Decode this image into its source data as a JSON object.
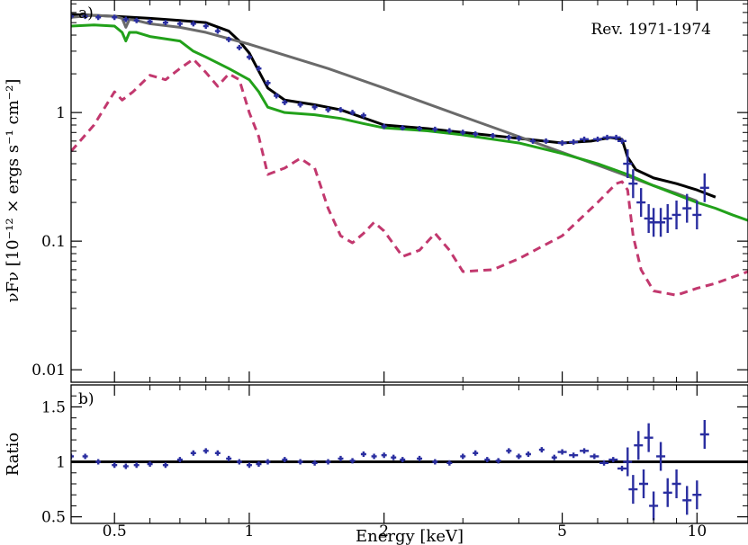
{
  "chart_data": [
    {
      "panel_label": "a)",
      "type": "line",
      "annotation": "Rev. 1971-1974",
      "x_scale": "log",
      "y_scale": "log",
      "xlim": [
        0.4,
        13
      ],
      "ylim": [
        0.008,
        7.5
      ],
      "ylabel": "νFν [10⁻¹² × ergs s⁻¹ cm⁻²]",
      "yticks": [
        0.01,
        0.1,
        1
      ],
      "yticklabels": [
        "0.01",
        "0.1",
        "1"
      ],
      "series": [
        {
          "color": "#2a2ea0",
          "style": "data-crosses",
          "x": [
            0.4,
            0.43,
            0.46,
            0.5,
            0.53,
            0.56,
            0.6,
            0.65,
            0.7,
            0.75,
            0.8,
            0.85,
            0.9,
            0.95,
            1.0,
            1.05,
            1.1,
            1.15,
            1.2,
            1.3,
            1.4,
            1.5,
            1.6,
            1.7,
            1.8,
            2.0,
            2.2,
            2.4,
            2.6,
            2.8,
            3.0,
            3.2,
            3.5,
            3.8,
            4.0,
            4.3,
            4.6,
            5.0,
            5.3,
            5.6,
            6.0,
            6.3,
            6.6,
            6.8,
            7.0,
            7.2,
            7.5,
            7.8,
            8.0,
            8.3,
            8.6,
            9.0,
            9.5,
            10.0,
            10.4
          ],
          "y": [
            5.6,
            5.6,
            5.5,
            5.5,
            5.3,
            5.2,
            5.1,
            5.0,
            4.9,
            4.9,
            4.7,
            4.3,
            3.7,
            3.2,
            2.7,
            2.2,
            1.7,
            1.35,
            1.2,
            1.15,
            1.1,
            1.05,
            1.05,
            1.0,
            0.95,
            0.78,
            0.76,
            0.75,
            0.74,
            0.72,
            0.7,
            0.68,
            0.66,
            0.64,
            0.63,
            0.6,
            0.6,
            0.58,
            0.59,
            0.62,
            0.62,
            0.64,
            0.64,
            0.6,
            0.4,
            0.28,
            0.2,
            0.15,
            0.14,
            0.14,
            0.15,
            0.16,
            0.18,
            0.16,
            0.26
          ]
        },
        {
          "color": "#000000",
          "style": "solid",
          "x": [
            0.4,
            0.5,
            0.6,
            0.7,
            0.8,
            0.9,
            0.95,
            1.0,
            1.05,
            1.1,
            1.2,
            1.4,
            1.6,
            2.0,
            2.5,
            3.0,
            4.0,
            5.0,
            5.8,
            6.4,
            6.8,
            7.0,
            7.3,
            8.0,
            9.0,
            10.0,
            11.0
          ],
          "y": [
            5.8,
            5.6,
            5.4,
            5.2,
            5.0,
            4.3,
            3.6,
            2.9,
            2.1,
            1.55,
            1.25,
            1.15,
            1.05,
            0.8,
            0.75,
            0.7,
            0.63,
            0.58,
            0.6,
            0.64,
            0.62,
            0.45,
            0.36,
            0.31,
            0.28,
            0.25,
            0.22
          ]
        },
        {
          "color": "#6a6a6a",
          "style": "solid",
          "x": [
            0.4,
            0.45,
            0.5,
            0.52,
            0.53,
            0.54,
            0.56,
            0.6,
            0.7,
            0.8,
            1.0,
            1.5,
            2.0,
            3.0,
            4.0,
            5.0,
            6.0,
            7.0,
            8.0,
            9.0,
            10.0
          ],
          "y": [
            5.5,
            5.7,
            5.6,
            5.4,
            4.6,
            5.3,
            5.2,
            4.9,
            4.6,
            4.2,
            3.4,
            2.2,
            1.55,
            0.93,
            0.65,
            0.49,
            0.39,
            0.32,
            0.27,
            0.235,
            0.205
          ]
        },
        {
          "color": "#22a11a",
          "style": "solid",
          "x": [
            0.4,
            0.45,
            0.5,
            0.52,
            0.53,
            0.54,
            0.56,
            0.6,
            0.7,
            0.75,
            0.8,
            0.9,
            1.0,
            1.05,
            1.1,
            1.2,
            1.4,
            1.6,
            1.8,
            2.0,
            2.5,
            3.0,
            4.0,
            5.0,
            6.0,
            7.0,
            8.0,
            9.0,
            10.0,
            11.0,
            12.0,
            13.0
          ],
          "y": [
            4.7,
            4.8,
            4.7,
            4.2,
            3.6,
            4.2,
            4.2,
            3.9,
            3.6,
            3.0,
            2.7,
            2.2,
            1.8,
            1.45,
            1.1,
            1.0,
            0.96,
            0.9,
            0.82,
            0.76,
            0.72,
            0.67,
            0.58,
            0.48,
            0.4,
            0.33,
            0.27,
            0.23,
            0.2,
            0.18,
            0.16,
            0.145
          ]
        },
        {
          "color": "#c2386e",
          "style": "dashed",
          "x": [
            0.4,
            0.45,
            0.5,
            0.52,
            0.55,
            0.6,
            0.65,
            0.7,
            0.75,
            0.8,
            0.85,
            0.9,
            0.95,
            1.0,
            1.05,
            1.1,
            1.2,
            1.3,
            1.4,
            1.5,
            1.6,
            1.7,
            1.8,
            1.9,
            2.0,
            2.2,
            2.4,
            2.6,
            2.8,
            3.0,
            3.5,
            4.0,
            5.0,
            6.0,
            6.6,
            6.8,
            7.0,
            7.2,
            7.5,
            8.0,
            9.0,
            10.0,
            11.0,
            13.0
          ],
          "y": [
            0.5,
            0.8,
            1.45,
            1.25,
            1.45,
            1.95,
            1.8,
            2.2,
            2.6,
            2.05,
            1.6,
            2.0,
            1.8,
            1.0,
            0.65,
            0.33,
            0.37,
            0.44,
            0.37,
            0.18,
            0.11,
            0.097,
            0.115,
            0.14,
            0.12,
            0.076,
            0.085,
            0.115,
            0.085,
            0.058,
            0.06,
            0.073,
            0.11,
            0.2,
            0.28,
            0.29,
            0.25,
            0.11,
            0.06,
            0.041,
            0.038,
            0.043,
            0.047,
            0.058
          ]
        }
      ]
    },
    {
      "panel_label": "b)",
      "type": "line",
      "x_scale": "log",
      "xlim": [
        0.4,
        13
      ],
      "ylim": [
        0.44,
        1.7
      ],
      "xlabel": "Energy [keV]",
      "ylabel": "Ratio",
      "xticks": [
        0.5,
        1,
        2,
        5,
        10
      ],
      "xticklabels": [
        "0.5",
        "1",
        "2",
        "5",
        "10"
      ],
      "yticks": [
        0.5,
        1,
        1.5
      ],
      "yticklabels": [
        "0.5",
        "1",
        "1.5"
      ],
      "reference_line": 1,
      "series": [
        {
          "color": "#2a2ea0",
          "style": "data-crosses",
          "x": [
            0.4,
            0.43,
            0.46,
            0.5,
            0.53,
            0.56,
            0.6,
            0.65,
            0.7,
            0.75,
            0.8,
            0.85,
            0.9,
            0.95,
            1.0,
            1.05,
            1.1,
            1.2,
            1.3,
            1.4,
            1.5,
            1.6,
            1.7,
            1.8,
            1.9,
            2.0,
            2.1,
            2.2,
            2.4,
            2.6,
            2.8,
            3.0,
            3.2,
            3.4,
            3.6,
            3.8,
            4.0,
            4.2,
            4.5,
            4.8,
            5.0,
            5.3,
            5.6,
            5.9,
            6.2,
            6.5,
            6.8,
            7.0,
            7.2,
            7.4,
            7.6,
            7.8,
            8.0,
            8.3,
            8.6,
            9.0,
            9.5,
            10.0,
            10.4
          ],
          "y": [
            1.05,
            1.05,
            1.0,
            0.97,
            0.96,
            0.97,
            0.98,
            0.97,
            1.02,
            1.08,
            1.1,
            1.08,
            1.03,
            1.0,
            0.97,
            0.98,
            1.0,
            1.02,
            1.0,
            0.99,
            1.0,
            1.03,
            1.01,
            1.07,
            1.05,
            1.06,
            1.04,
            1.02,
            1.03,
            1.0,
            0.99,
            1.05,
            1.08,
            1.02,
            1.01,
            1.1,
            1.05,
            1.07,
            1.11,
            1.04,
            1.09,
            1.06,
            1.1,
            1.05,
            0.99,
            1.02,
            0.94,
            1.0,
            0.75,
            1.15,
            0.8,
            1.22,
            0.6,
            1.05,
            0.72,
            0.8,
            0.65,
            0.7,
            1.25
          ]
        }
      ]
    }
  ]
}
